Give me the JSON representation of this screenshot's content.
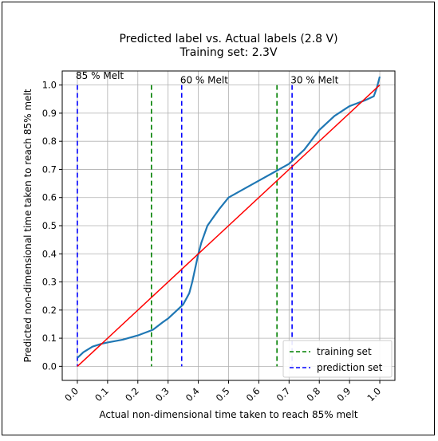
{
  "chart_data": {
    "type": "line",
    "title": "Predicted label vs. Actual labels (2.8 V)",
    "subtitle": "Training set: 2.3V",
    "xlabel": "Actual non-dimensional time taken to reach 85% melt",
    "ylabel": "Predicted non-dimensional time taken to reach 85% melt",
    "xlim": [
      -0.05,
      1.05
    ],
    "ylim": [
      -0.05,
      1.05
    ],
    "xticks": [
      0.0,
      0.1,
      0.2,
      0.3,
      0.4,
      0.5,
      0.6,
      0.7,
      0.8,
      0.9,
      1.0
    ],
    "xtick_labels": [
      "0.0",
      "0.1",
      "0.2",
      "0.3",
      "0.4",
      "0.5",
      "0.6",
      "0.7",
      "0.8",
      "0.9",
      "1.0"
    ],
    "yticks": [
      0.0,
      0.1,
      0.2,
      0.3,
      0.4,
      0.5,
      0.6,
      0.7,
      0.8,
      0.9,
      1.0
    ],
    "ytick_labels": [
      "0.0",
      "0.1",
      "0.2",
      "0.3",
      "0.4",
      "0.5",
      "0.6",
      "0.7",
      "0.8",
      "0.9",
      "1.0"
    ],
    "grid": true,
    "legend_position": "lower-right",
    "series": [
      {
        "color": "#1f77b4",
        "x": [
          0.0,
          0.02,
          0.05,
          0.08,
          0.1,
          0.15,
          0.2,
          0.25,
          0.28,
          0.3,
          0.33,
          0.35,
          0.37,
          0.38,
          0.39,
          0.4,
          0.41,
          0.42,
          0.43,
          0.45,
          0.47,
          0.5,
          0.55,
          0.6,
          0.65,
          0.7,
          0.72,
          0.75,
          0.8,
          0.85,
          0.9,
          0.95,
          0.98,
          0.99,
          1.0
        ],
        "y": [
          0.03,
          0.05,
          0.07,
          0.08,
          0.085,
          0.095,
          0.11,
          0.13,
          0.155,
          0.17,
          0.2,
          0.22,
          0.26,
          0.3,
          0.35,
          0.4,
          0.44,
          0.47,
          0.5,
          0.53,
          0.56,
          0.6,
          0.63,
          0.66,
          0.69,
          0.72,
          0.74,
          0.77,
          0.84,
          0.89,
          0.925,
          0.945,
          0.96,
          0.99,
          1.03
        ]
      },
      {
        "color": "#ff0000",
        "x": [
          0.0,
          1.0
        ],
        "y": [
          0.0,
          1.0
        ]
      }
    ],
    "vlines": [
      {
        "x": 0.0,
        "color": "#0000ff",
        "series": "prediction set"
      },
      {
        "x": 0.345,
        "color": "#0000ff",
        "series": "prediction set"
      },
      {
        "x": 0.71,
        "color": "#0000ff",
        "series": "prediction set"
      },
      {
        "x": 0.245,
        "color": "#008000",
        "series": "training set"
      },
      {
        "x": 0.66,
        "color": "#008000",
        "series": "training set"
      }
    ],
    "annotations": [
      {
        "text": "85 % Melt",
        "x": -0.005,
        "y": 1.01
      },
      {
        "text": "60 % Melt",
        "x": 0.34,
        "y": 0.995
      },
      {
        "text": "30 % Melt",
        "x": 0.705,
        "y": 0.995
      }
    ],
    "legend": [
      {
        "label": "training set",
        "color": "#008000",
        "style": "dashed"
      },
      {
        "label": "prediction set",
        "color": "#0000ff",
        "style": "dashed"
      }
    ]
  }
}
